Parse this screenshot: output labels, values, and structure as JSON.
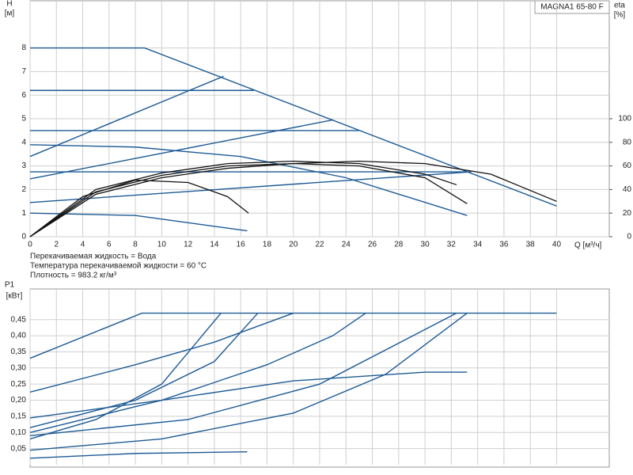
{
  "chart_data": [
    {
      "type": "line",
      "title": "MAGNA1 65-80 F",
      "y_label": "H",
      "y_unit": "[м]",
      "y2_label": "eta",
      "y2_unit": "[%]",
      "x_label": "Q [м³/ч]",
      "annotations": [
        "Перекачиваемая жидкость = Вода",
        "Температура перекачиваемой жидкости = 60 °C",
        "Плотность = 983.2 кг/м³"
      ],
      "xlim": [
        0,
        44
      ],
      "xticks": [
        0,
        2,
        4,
        6,
        8,
        10,
        12,
        14,
        16,
        18,
        20,
        22,
        24,
        26,
        28,
        30,
        32,
        34,
        36,
        38,
        40
      ],
      "ylim": [
        0,
        10
      ],
      "yticks": [
        0,
        1,
        2,
        3,
        4,
        5,
        6,
        7,
        8
      ],
      "y2lim": [
        0,
        200
      ],
      "y2ticks": [
        0,
        20,
        40,
        60,
        80,
        100
      ],
      "grid": true,
      "series": [
        {
          "color": "#1d5a95",
          "x": [
            0,
            8.7,
            40
          ],
          "values": [
            8,
            8,
            1.3
          ]
        },
        {
          "color": "#1d5a95",
          "x": [
            0,
            17
          ],
          "values": [
            6.2,
            6.2
          ]
        },
        {
          "color": "#1d5a95",
          "x": [
            0,
            25
          ],
          "values": [
            4.5,
            4.5
          ]
        },
        {
          "color": "#1d5a95",
          "x": [
            0,
            33.5
          ],
          "values": [
            2.75,
            2.75
          ]
        },
        {
          "color": "#1d5a95",
          "x": [
            0,
            14.7
          ],
          "values": [
            3.4,
            6.8
          ]
        },
        {
          "color": "#1d5a95",
          "x": [
            0,
            23
          ],
          "values": [
            2.45,
            4.95
          ]
        },
        {
          "color": "#1d5a95",
          "x": [
            0,
            33.5
          ],
          "values": [
            1.45,
            2.75
          ]
        },
        {
          "color": "#1d5a95",
          "x": [
            0,
            8,
            16,
            24,
            33.2
          ],
          "values": [
            3.9,
            3.8,
            3.4,
            2.5,
            0.9
          ]
        },
        {
          "color": "#1d5a95",
          "x": [
            0,
            8,
            16.5
          ],
          "values": [
            1.0,
            0.9,
            0.25
          ]
        },
        {
          "color": "#111111",
          "axis": "y2",
          "x": [
            0,
            4,
            8,
            12,
            15,
            16.6
          ],
          "values": [
            0,
            34,
            48,
            46,
            34,
            20
          ]
        },
        {
          "color": "#111111",
          "axis": "y2",
          "x": [
            0,
            5,
            10,
            15,
            20,
            25,
            30,
            33.2
          ],
          "values": [
            0,
            38,
            52,
            60,
            62,
            60,
            50,
            28
          ]
        },
        {
          "color": "#111111",
          "axis": "y2",
          "x": [
            0,
            5,
            10,
            15,
            20,
            25,
            30,
            35,
            40
          ],
          "values": [
            0,
            36,
            50,
            58,
            62,
            64,
            62,
            53,
            30
          ]
        },
        {
          "color": "#111111",
          "axis": "y2",
          "x": [
            0,
            5,
            10,
            15,
            20,
            25,
            30,
            32.4
          ],
          "values": [
            0,
            40,
            54,
            62,
            64,
            62,
            53,
            44
          ]
        }
      ]
    },
    {
      "type": "line",
      "y_label": "P1",
      "y_unit": "[кВт]",
      "xlim": [
        0,
        44
      ],
      "xticks": [
        0,
        2,
        4,
        6,
        8,
        10,
        12,
        14,
        16,
        18,
        20,
        22,
        24,
        26,
        28,
        30,
        32,
        34,
        36,
        38,
        40
      ],
      "ylim": [
        0,
        0.545
      ],
      "yticks": [
        {
          "value": 0.05,
          "label": "0,05"
        },
        {
          "value": 0.1,
          "label": "0,10"
        },
        {
          "value": 0.15,
          "label": "0,15"
        },
        {
          "value": 0.2,
          "label": "0,20"
        },
        {
          "value": 0.25,
          "label": "0,25"
        },
        {
          "value": 0.3,
          "label": "0,30"
        },
        {
          "value": 0.35,
          "label": "0,35"
        },
        {
          "value": 0.4,
          "label": "0,40"
        },
        {
          "value": 0.45,
          "label": "0,45"
        }
      ],
      "grid": true,
      "series": [
        {
          "color": "#1d5a95",
          "x": [
            0,
            8.5,
            40
          ],
          "values": [
            0.33,
            0.47,
            0.47
          ]
        },
        {
          "color": "#1d5a95",
          "x": [
            0,
            8,
            14,
            20
          ],
          "values": [
            0.225,
            0.31,
            0.38,
            0.47
          ]
        },
        {
          "color": "#1d5a95",
          "x": [
            0,
            10,
            20,
            30,
            33.2
          ],
          "values": [
            0.145,
            0.2,
            0.26,
            0.287,
            0.287
          ]
        },
        {
          "color": "#1d5a95",
          "x": [
            0,
            8,
            16.5
          ],
          "values": [
            0.02,
            0.035,
            0.04
          ]
        },
        {
          "color": "#1d5a95",
          "x": [
            0,
            5,
            10,
            14.5
          ],
          "values": [
            0.08,
            0.14,
            0.25,
            0.47
          ]
        },
        {
          "color": "#1d5a95",
          "x": [
            0,
            8,
            14,
            17.3
          ],
          "values": [
            0.115,
            0.2,
            0.32,
            0.47
          ]
        },
        {
          "color": "#1d5a95",
          "x": [
            0,
            10,
            20,
            27,
            33.2
          ],
          "values": [
            0.045,
            0.08,
            0.16,
            0.28,
            0.47
          ]
        },
        {
          "color": "#1d5a95",
          "x": [
            0,
            10,
            18,
            23,
            25.5
          ],
          "values": [
            0.1,
            0.2,
            0.31,
            0.4,
            0.47
          ]
        },
        {
          "color": "#1d5a95",
          "x": [
            0,
            12,
            22,
            32.4
          ],
          "values": [
            0.09,
            0.14,
            0.25,
            0.47
          ]
        }
      ]
    }
  ]
}
